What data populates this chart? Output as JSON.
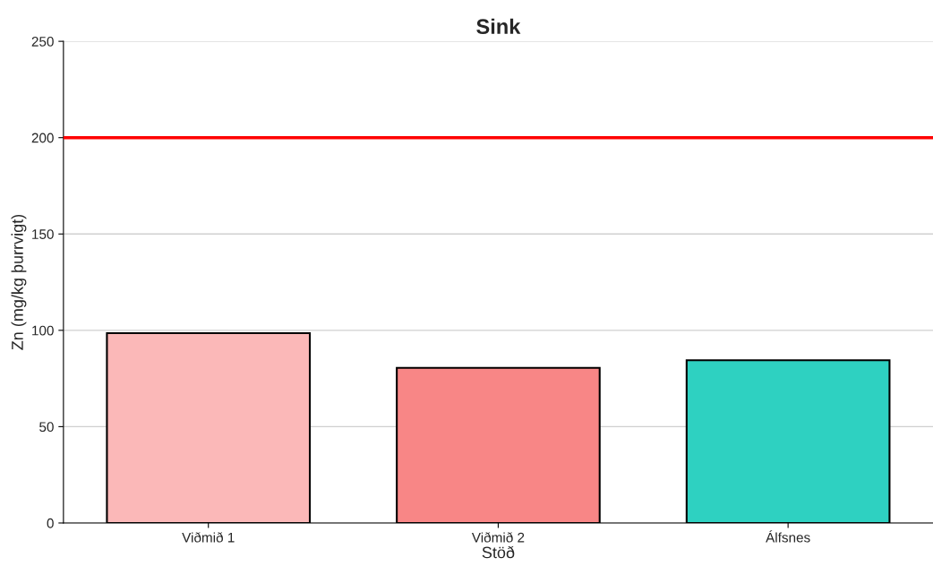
{
  "chart_data": {
    "type": "bar",
    "title": "Sink",
    "xlabel": "Stöð",
    "ylabel": "Zn (mg/kg þurrvigt)",
    "categories": [
      "Viðmið 1",
      "Viðmið 2",
      "Álfsnes"
    ],
    "values": [
      98.5,
      80.5,
      84.5
    ],
    "colors": [
      "#fbb8b8",
      "#f88686",
      "#2ed1c1"
    ],
    "ylim": [
      0,
      250
    ],
    "yticks": [
      0,
      50,
      100,
      150,
      200,
      250
    ],
    "grid": "y",
    "ref_lines": [
      {
        "axis": "y",
        "value": 200,
        "color": "#ff0000",
        "line_style": "solid"
      }
    ]
  }
}
